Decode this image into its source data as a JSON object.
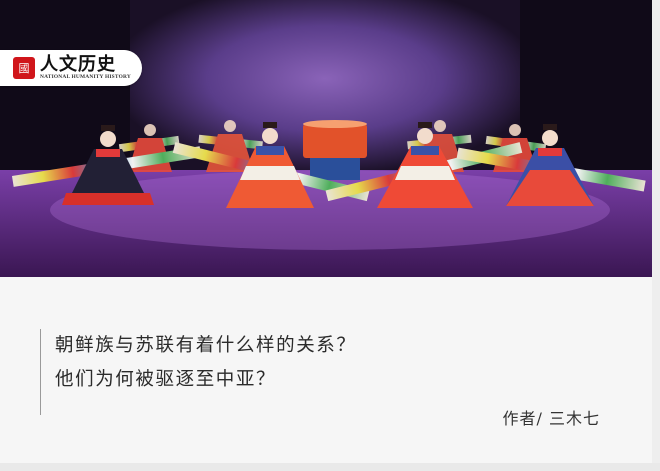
{
  "logo": {
    "name_cn": "人文历史",
    "name_en": "NATIONAL HUMANITY HISTORY",
    "seal_glyph": "國",
    "seal_color": "#d0161b"
  },
  "article": {
    "headline_line1": "朝鲜族与苏联有着什么样的关系？",
    "headline_line2": "他们为何被驱逐至中亚？",
    "byline": "作者/ 三木七"
  }
}
